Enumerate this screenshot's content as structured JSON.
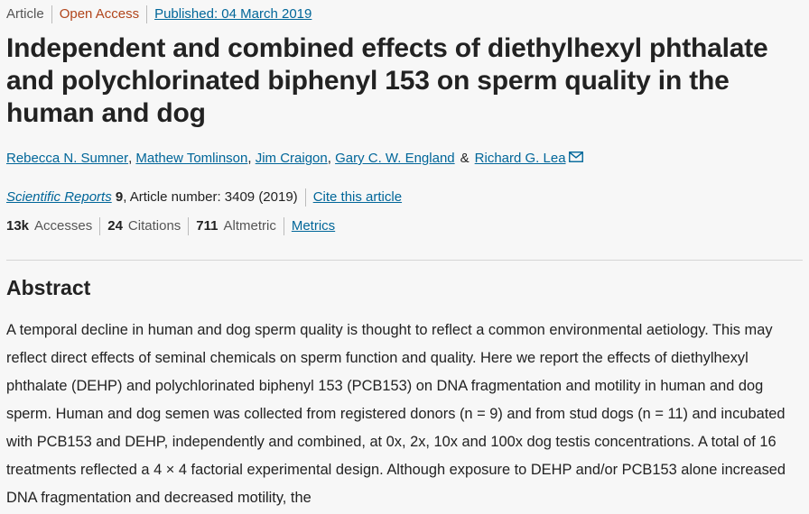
{
  "article_meta": {
    "type": "Article",
    "access": "Open Access",
    "published": "Published: 04 March 2019"
  },
  "title": "Independent and combined effects of diethylhexyl phthalate and polychlorinated biphenyl 153 on sperm quality in the human and dog",
  "authors": [
    {
      "name": "Rebecca N. Sumner",
      "suffix": ","
    },
    {
      "name": "Mathew Tomlinson",
      "suffix": ","
    },
    {
      "name": "Jim Craigon",
      "suffix": ","
    },
    {
      "name": "Gary C. W. England",
      "suffix": ""
    },
    {
      "name": "Richard G. Lea",
      "suffix": ""
    }
  ],
  "authors_amp": "&",
  "journal": {
    "name": "Scientific Reports",
    "volume": "9",
    "article_number": ", Article number: 3409 (2019)",
    "cite_label": "Cite this article"
  },
  "metrics": {
    "accesses_value": "13k",
    "accesses_label": "Accesses",
    "citations_value": "24",
    "citations_label": "Citations",
    "altmetric_value": "711",
    "altmetric_label": "Altmetric",
    "link_label": "Metrics"
  },
  "abstract": {
    "heading": "Abstract",
    "text": "A temporal decline in human and dog sperm quality is thought to reflect a common environmental aetiology. This may reflect direct effects of seminal chemicals on sperm function and quality. Here we report the effects of diethylhexyl phthalate (DEHP) and polychlorinated biphenyl 153 (PCB153) on DNA fragmentation and motility in human and dog sperm. Human and dog semen was collected from registered donors (n = 9) and from stud dogs (n = 11) and incubated with PCB153 and DEHP, independently and combined, at 0x, 2x, 10x and 100x dog testis concentrations. A total of 16 treatments reflected a 4 × 4 factorial experimental design. Although exposure to DEHP and/or PCB153 alone increased DNA fragmentation and decreased motility, the"
  },
  "colors": {
    "link": "#006699",
    "open_access": "#b1451b",
    "text": "#222222",
    "background": "#f7f7f7"
  },
  "icons": {
    "author_contact": "mail-icon"
  }
}
